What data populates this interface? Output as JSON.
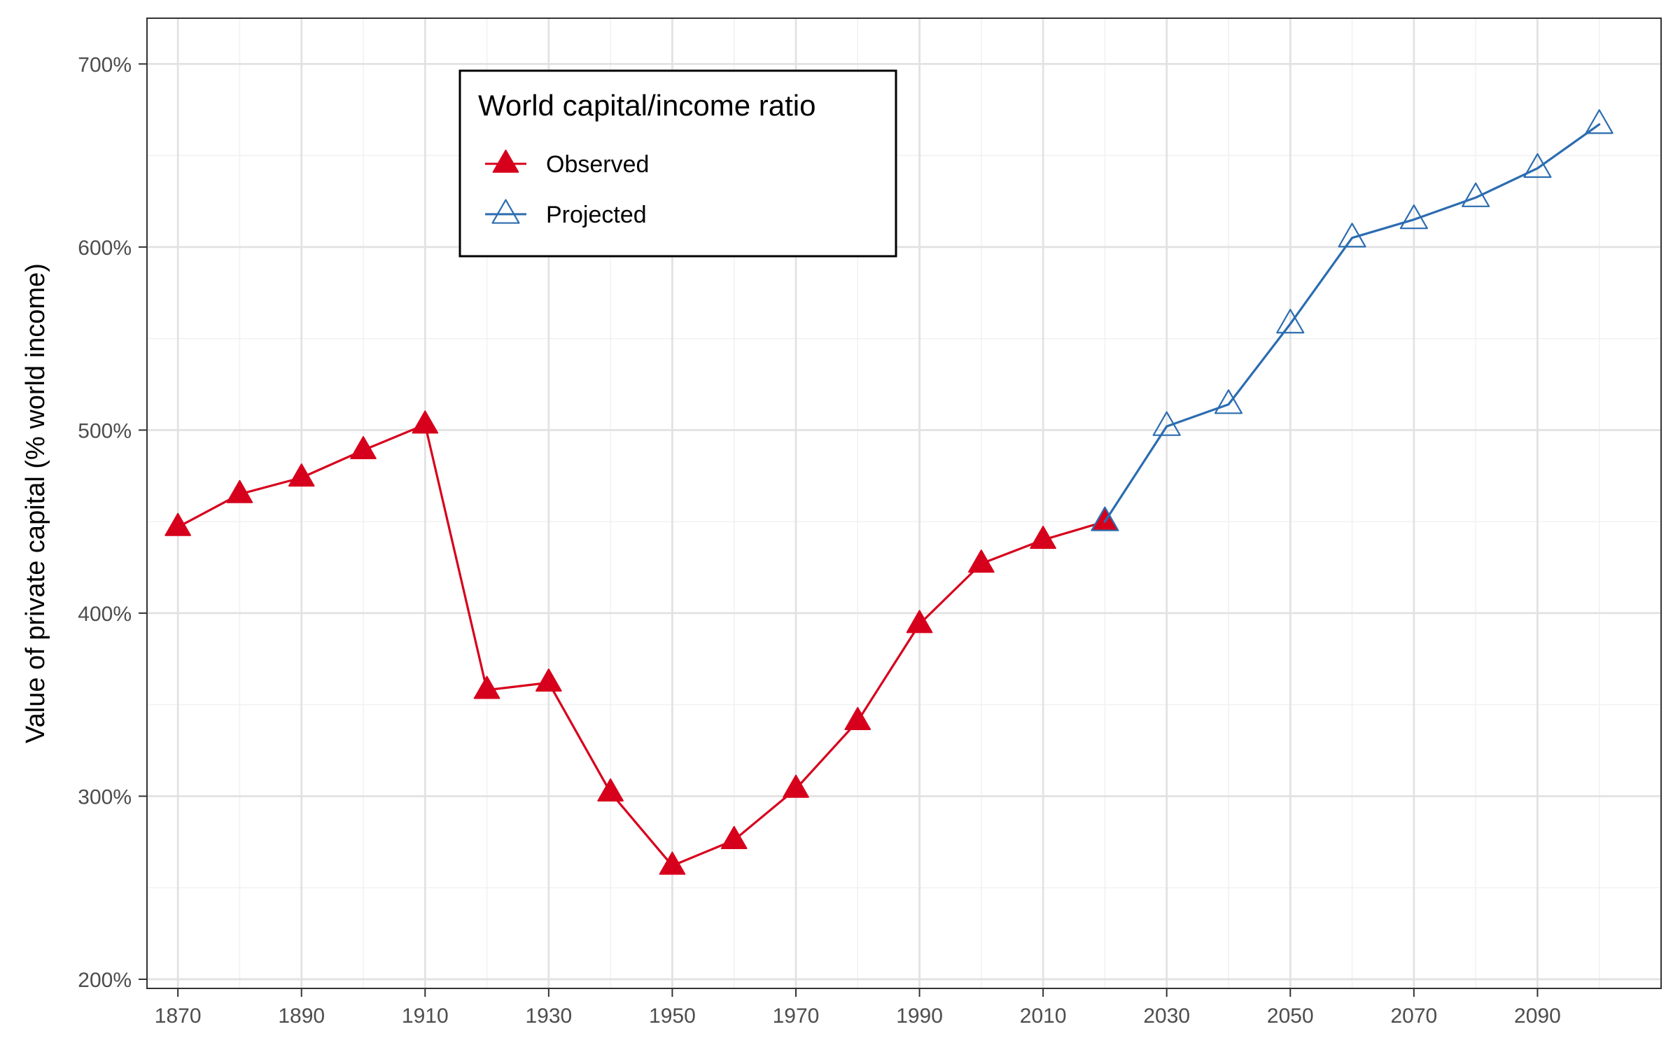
{
  "chart_data": {
    "type": "line",
    "title": "",
    "xlabel": "",
    "ylabel": "Value of private capital (% world income)",
    "xlim": [
      1865,
      2110
    ],
    "ylim": [
      195,
      725
    ],
    "x_ticks": [
      1870,
      1890,
      1910,
      1930,
      1950,
      1970,
      1990,
      2010,
      2030,
      2050,
      2070,
      2090
    ],
    "x_tick_labels": [
      "1870",
      "1890",
      "1910",
      "1930",
      "1950",
      "1970",
      "1990",
      "2010",
      "2030",
      "2050",
      "2070",
      "2090"
    ],
    "y_ticks": [
      200,
      300,
      400,
      500,
      600,
      700
    ],
    "y_tick_labels": [
      "200%",
      "300%",
      "400%",
      "500%",
      "600%",
      "700%"
    ],
    "grid": true,
    "legend": {
      "title": "World capital/income ratio",
      "placement": "top-left"
    },
    "series": [
      {
        "name": "Observed",
        "color": "#d7001c",
        "marker": "filled-triangle",
        "x": [
          1870,
          1880,
          1890,
          1900,
          1910,
          1920,
          1930,
          1940,
          1950,
          1960,
          1970,
          1980,
          1990,
          2000,
          2010,
          2020
        ],
        "values": [
          447,
          465,
          474,
          489,
          503,
          358,
          362,
          302,
          262,
          276,
          304,
          341,
          394,
          427,
          440,
          450
        ]
      },
      {
        "name": "Projected",
        "color": "#2b6cb0",
        "marker": "open-triangle",
        "x": [
          2020,
          2030,
          2040,
          2050,
          2060,
          2070,
          2080,
          2090,
          2100
        ],
        "values": [
          450,
          502,
          514,
          558,
          605,
          615,
          627,
          643,
          667
        ]
      }
    ]
  }
}
